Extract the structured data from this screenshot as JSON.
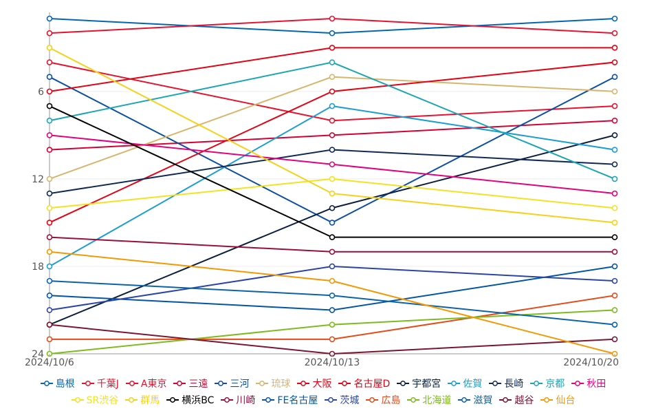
{
  "chart_data": {
    "type": "line",
    "title": "",
    "x": [
      "2024/10/6",
      "2024/10/13",
      "2024/10/20"
    ],
    "y_ticks": [
      6,
      12,
      18,
      24
    ],
    "ylim": [
      1,
      24
    ],
    "y_inverted": true,
    "series": [
      {
        "name": "島根",
        "color": "#0066b3",
        "values": [
          1,
          2,
          1
        ]
      },
      {
        "name": "千葉J",
        "color": "#e8112d",
        "values": [
          2,
          1,
          2
        ]
      },
      {
        "name": "A東京",
        "color": "#e8112d",
        "values": [
          4,
          8,
          7
        ]
      },
      {
        "name": "三遠",
        "color": "#d50032",
        "values": [
          10,
          9,
          8
        ]
      },
      {
        "name": "三河",
        "color": "#0b4ea2",
        "values": [
          5,
          15,
          5
        ]
      },
      {
        "name": "琉球",
        "color": "#d8b56a",
        "values": [
          12,
          5,
          6
        ]
      },
      {
        "name": "大阪",
        "color": "#e60012",
        "values": [
          6,
          3,
          3
        ]
      },
      {
        "name": "名古屋D",
        "color": "#e50012",
        "values": [
          15,
          6,
          4
        ]
      },
      {
        "name": "宇都宮",
        "color": "#0a1e3f",
        "values": [
          22,
          14,
          9
        ]
      },
      {
        "name": "佐賀",
        "color": "#1a9ed2",
        "values": [
          18,
          7,
          10
        ]
      },
      {
        "name": "長崎",
        "color": "#102a56",
        "values": [
          13,
          10,
          11
        ]
      },
      {
        "name": "京都",
        "color": "#1aa5b6",
        "values": [
          8,
          4,
          12
        ]
      },
      {
        "name": "秋田",
        "color": "#e4007f",
        "values": [
          9,
          11,
          13
        ]
      },
      {
        "name": "SR渋谷",
        "color": "#f5e21e",
        "values": [
          14,
          12,
          14
        ]
      },
      {
        "name": "群馬",
        "color": "#f7d117",
        "values": [
          3,
          13,
          15
        ]
      },
      {
        "name": "横浜BC",
        "color": "#000000",
        "values": [
          7,
          16,
          16
        ]
      },
      {
        "name": "川崎",
        "color": "#9b0e3a",
        "values": [
          16,
          17,
          17
        ]
      },
      {
        "name": "FE名古屋",
        "color": "#0055a5",
        "values": [
          20,
          21,
          18
        ]
      },
      {
        "name": "茨城",
        "color": "#2a44a8",
        "values": [
          21,
          18,
          19
        ]
      },
      {
        "name": "広島",
        "color": "#e64a19",
        "values": [
          23,
          23,
          20
        ]
      },
      {
        "name": "北海道",
        "color": "#7cbb1c",
        "values": [
          24,
          22,
          21
        ]
      },
      {
        "name": "滋賀",
        "color": "#0a62a8",
        "values": [
          19,
          20,
          22
        ]
      },
      {
        "name": "越谷",
        "color": "#7b1530",
        "values": [
          22,
          24,
          23
        ]
      },
      {
        "name": "仙台",
        "color": "#f39800",
        "values": [
          17,
          19,
          24
        ]
      }
    ]
  }
}
